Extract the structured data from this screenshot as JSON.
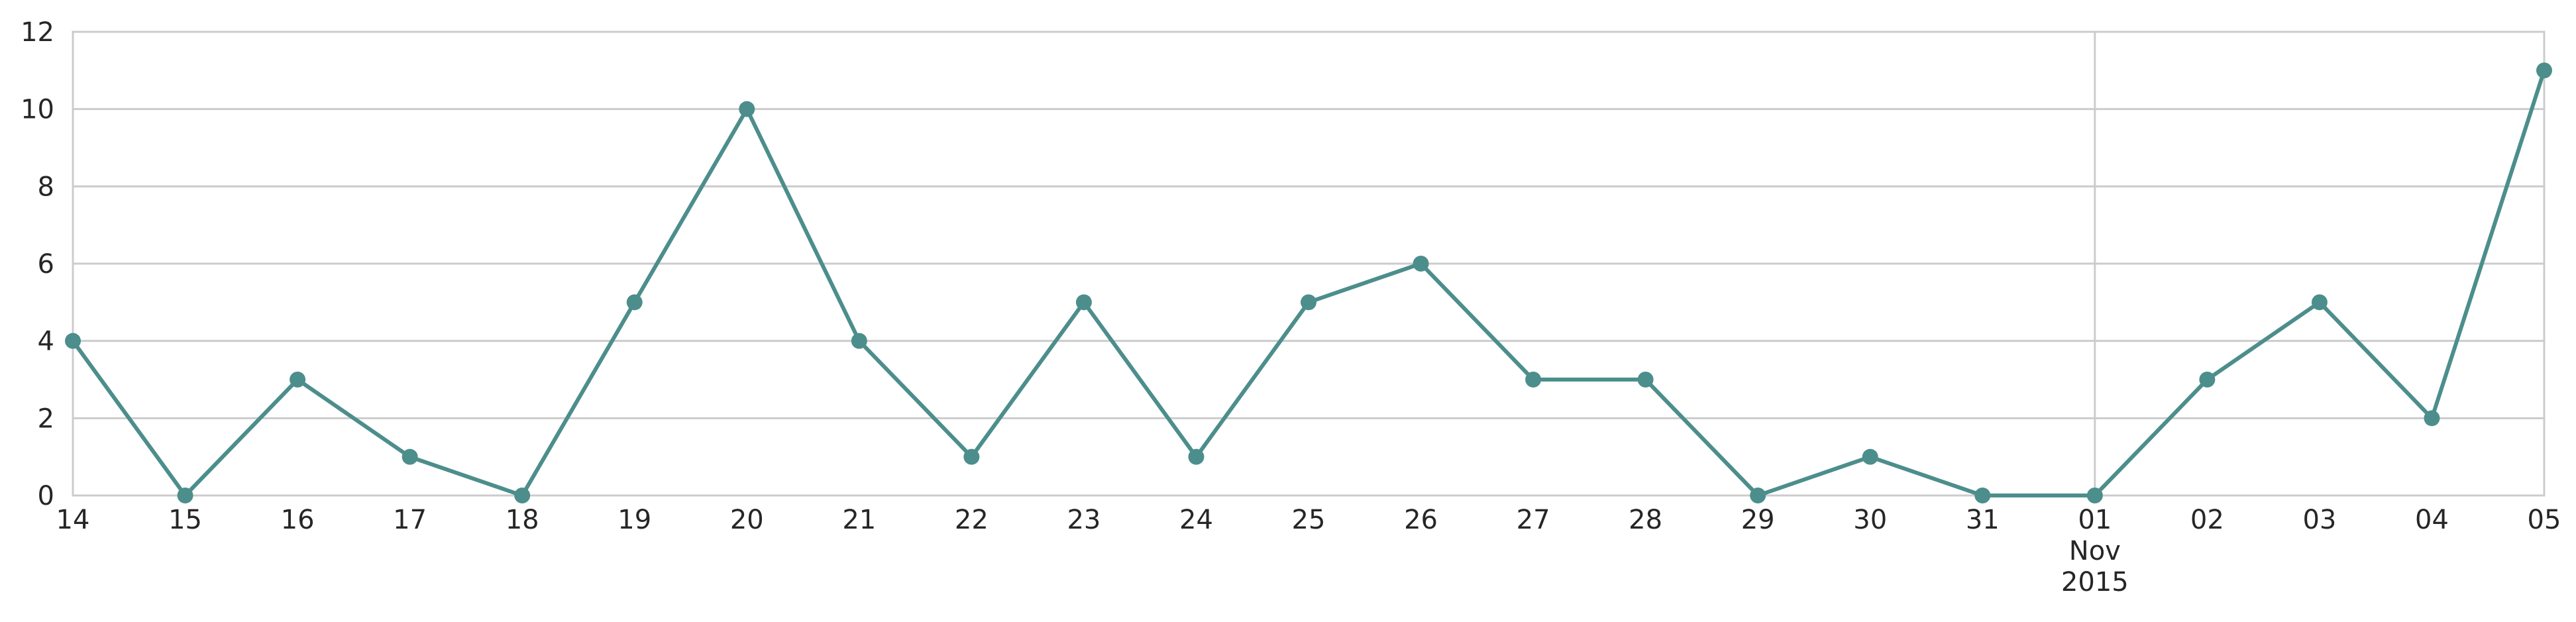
{
  "chart_data": {
    "type": "line",
    "title": "",
    "xlabel": "",
    "ylabel": "",
    "ylim": [
      0,
      12
    ],
    "y_ticks": [
      "0",
      "2",
      "4",
      "6",
      "8",
      "10",
      "12"
    ],
    "x_ticks": [
      {
        "date": "2015-10-14",
        "label": "14"
      },
      {
        "date": "2015-10-15",
        "label": "15"
      },
      {
        "date": "2015-10-16",
        "label": "16"
      },
      {
        "date": "2015-10-17",
        "label": "17"
      },
      {
        "date": "2015-10-18",
        "label": "18"
      },
      {
        "date": "2015-10-19",
        "label": "19"
      },
      {
        "date": "2015-10-20",
        "label": "20"
      },
      {
        "date": "2015-10-21",
        "label": "21"
      },
      {
        "date": "2015-10-22",
        "label": "22"
      },
      {
        "date": "2015-10-23",
        "label": "23"
      },
      {
        "date": "2015-10-24",
        "label": "24"
      },
      {
        "date": "2015-10-25",
        "label": "25"
      },
      {
        "date": "2015-10-26",
        "label": "26"
      },
      {
        "date": "2015-10-27",
        "label": "27"
      },
      {
        "date": "2015-10-28",
        "label": "28"
      },
      {
        "date": "2015-10-29",
        "label": "29"
      },
      {
        "date": "2015-10-30",
        "label": "30"
      },
      {
        "date": "2015-10-31",
        "label": "31"
      },
      {
        "date": "2015-11-01",
        "label": "01",
        "sublabels": [
          "Nov",
          "2015"
        ]
      },
      {
        "date": "2015-11-02",
        "label": "02"
      },
      {
        "date": "2015-11-03",
        "label": "03"
      },
      {
        "date": "2015-11-04",
        "label": "04"
      },
      {
        "date": "2015-11-05",
        "label": "05"
      }
    ],
    "x_major_gridline": "2015-11-01",
    "grid": true,
    "series": [
      {
        "color": "#4c8e8c",
        "x": [
          "2015-10-14",
          "2015-10-15",
          "2015-10-16",
          "2015-10-17",
          "2015-10-18",
          "2015-10-19",
          "2015-10-20",
          "2015-10-21",
          "2015-10-22",
          "2015-10-23",
          "2015-10-24",
          "2015-10-25",
          "2015-10-26",
          "2015-10-27",
          "2015-10-28",
          "2015-10-29",
          "2015-10-30",
          "2015-10-31",
          "2015-11-01",
          "2015-11-02",
          "2015-11-03",
          "2015-11-04",
          "2015-11-05"
        ],
        "values": [
          4,
          0,
          3,
          1,
          0,
          5,
          10,
          4,
          1,
          5,
          1,
          5,
          6,
          3,
          3,
          0,
          1,
          0,
          0,
          3,
          5,
          2,
          11
        ]
      }
    ]
  }
}
